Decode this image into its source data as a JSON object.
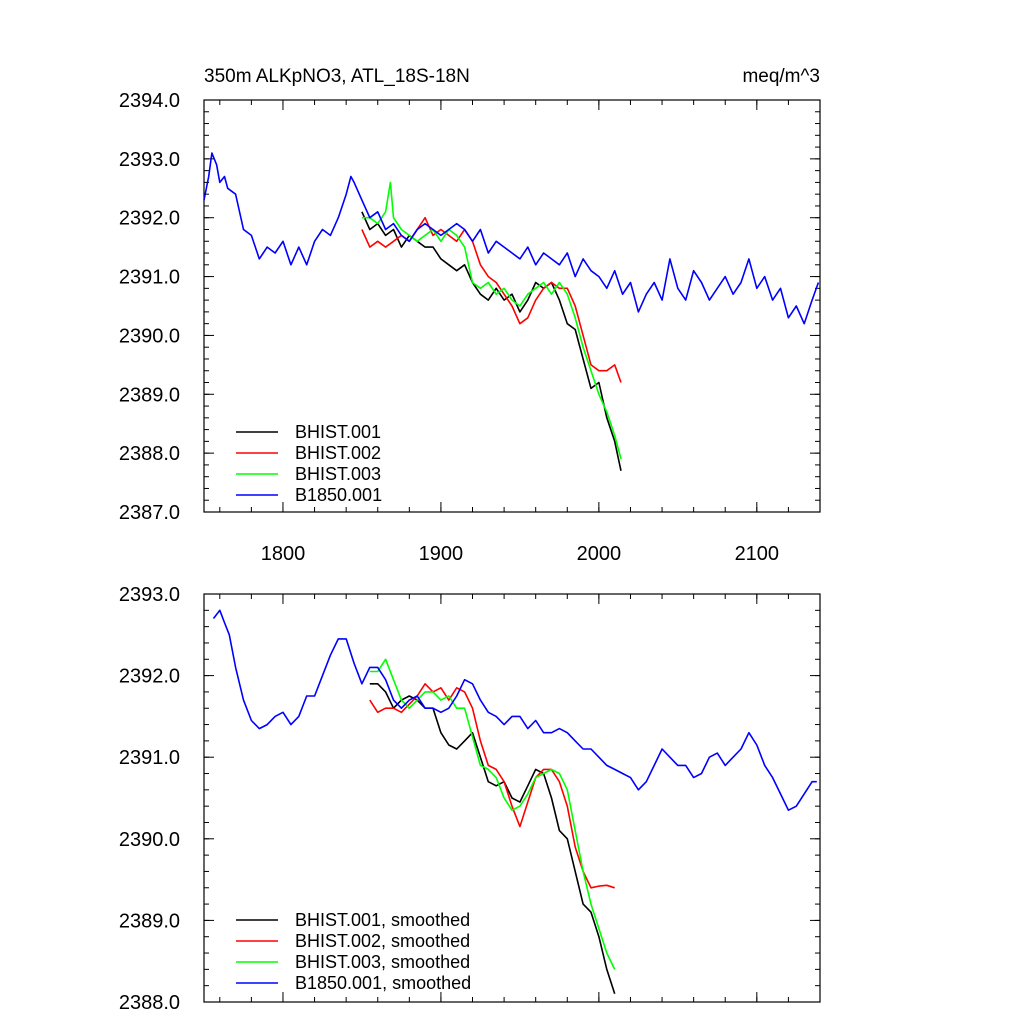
{
  "header": {
    "left": "350m ALKpNO3, ATL_18S-18N",
    "right": "meq/m^3"
  },
  "colors": {
    "BHIST.001": "#000000",
    "BHIST.002": "#ff0000",
    "BHIST.003": "#00ff00",
    "B1850.001": "#0000ff"
  },
  "chart_data": [
    {
      "type": "line",
      "title": "",
      "xlabel": "",
      "ylabel": "",
      "xlim": [
        1750,
        2140
      ],
      "ylim": [
        2387.0,
        2394.0
      ],
      "x_ticks": [
        1800,
        1900,
        2000,
        2100
      ],
      "x_tick_labels": [
        "1800",
        "1900",
        "2000",
        "2100"
      ],
      "y_ticks": [
        2387.0,
        2388.0,
        2389.0,
        2390.0,
        2391.0,
        2392.0,
        2393.0,
        2394.0
      ],
      "y_tick_labels": [
        "2387.0",
        "2388.0",
        "2389.0",
        "2390.0",
        "2391.0",
        "2392.0",
        "2393.0",
        "2394.0"
      ],
      "grid": false,
      "legend_position": "bottom-left",
      "series": [
        {
          "name": "BHIST.001",
          "color": "#000000",
          "x": [
            1850,
            1855,
            1860,
            1865,
            1870,
            1875,
            1880,
            1885,
            1890,
            1895,
            1900,
            1905,
            1910,
            1915,
            1920,
            1925,
            1930,
            1935,
            1940,
            1945,
            1950,
            1955,
            1960,
            1965,
            1970,
            1975,
            1980,
            1985,
            1990,
            1995,
            2000,
            2005,
            2010,
            2014
          ],
          "y": [
            2392.1,
            2391.8,
            2391.9,
            2391.7,
            2391.8,
            2391.5,
            2391.7,
            2391.6,
            2391.5,
            2391.5,
            2391.3,
            2391.2,
            2391.1,
            2391.2,
            2390.9,
            2390.7,
            2390.6,
            2390.8,
            2390.6,
            2390.7,
            2390.4,
            2390.6,
            2390.9,
            2390.8,
            2390.9,
            2390.6,
            2390.2,
            2390.1,
            2389.6,
            2389.1,
            2389.2,
            2388.6,
            2388.2,
            2387.7
          ]
        },
        {
          "name": "BHIST.002",
          "color": "#ff0000",
          "x": [
            1850,
            1855,
            1860,
            1865,
            1870,
            1875,
            1880,
            1885,
            1890,
            1895,
            1900,
            1905,
            1910,
            1915,
            1920,
            1925,
            1930,
            1935,
            1940,
            1945,
            1950,
            1955,
            1960,
            1965,
            1970,
            1975,
            1980,
            1985,
            1990,
            1995,
            2000,
            2005,
            2010,
            2014
          ],
          "y": [
            2391.8,
            2391.5,
            2391.6,
            2391.5,
            2391.6,
            2391.7,
            2391.6,
            2391.8,
            2392.0,
            2391.7,
            2391.8,
            2391.7,
            2391.6,
            2391.8,
            2391.6,
            2391.2,
            2391.0,
            2390.9,
            2390.7,
            2390.5,
            2390.2,
            2390.3,
            2390.6,
            2390.8,
            2390.9,
            2390.8,
            2390.8,
            2390.5,
            2390.0,
            2389.5,
            2389.4,
            2389.4,
            2389.5,
            2389.2
          ]
        },
        {
          "name": "BHIST.003",
          "color": "#00ff00",
          "x": [
            1850,
            1855,
            1860,
            1865,
            1868,
            1870,
            1875,
            1880,
            1885,
            1890,
            1895,
            1900,
            1905,
            1910,
            1915,
            1920,
            1925,
            1930,
            1935,
            1940,
            1945,
            1950,
            1955,
            1960,
            1965,
            1970,
            1975,
            1980,
            1985,
            1990,
            1995,
            2000,
            2005,
            2010,
            2014
          ],
          "y": [
            2392.0,
            2392.0,
            2391.9,
            2392.1,
            2392.6,
            2392.0,
            2391.8,
            2391.7,
            2391.6,
            2391.7,
            2391.8,
            2391.6,
            2391.8,
            2391.7,
            2391.5,
            2390.9,
            2390.8,
            2390.9,
            2390.7,
            2390.8,
            2390.6,
            2390.5,
            2390.7,
            2390.8,
            2390.9,
            2390.7,
            2390.9,
            2390.7,
            2390.3,
            2389.8,
            2389.4,
            2389.0,
            2388.7,
            2388.3,
            2387.9
          ]
        },
        {
          "name": "B1850.001",
          "color": "#0000ff",
          "x": [
            1750,
            1753,
            1755,
            1758,
            1760,
            1763,
            1765,
            1770,
            1775,
            1780,
            1785,
            1790,
            1795,
            1800,
            1805,
            1810,
            1815,
            1820,
            1825,
            1830,
            1835,
            1840,
            1843,
            1845,
            1850,
            1855,
            1860,
            1865,
            1870,
            1875,
            1880,
            1885,
            1890,
            1895,
            1900,
            1905,
            1910,
            1915,
            1920,
            1925,
            1930,
            1935,
            1940,
            1945,
            1950,
            1955,
            1960,
            1965,
            1970,
            1975,
            1980,
            1985,
            1990,
            1995,
            2000,
            2005,
            2010,
            2015,
            2020,
            2025,
            2030,
            2035,
            2040,
            2045,
            2050,
            2055,
            2060,
            2065,
            2070,
            2075,
            2080,
            2085,
            2090,
            2095,
            2100,
            2105,
            2110,
            2115,
            2120,
            2125,
            2130,
            2135,
            2139
          ],
          "y": [
            2392.3,
            2392.7,
            2393.1,
            2392.9,
            2392.6,
            2392.7,
            2392.5,
            2392.4,
            2391.8,
            2391.7,
            2391.3,
            2391.5,
            2391.4,
            2391.6,
            2391.2,
            2391.5,
            2391.2,
            2391.6,
            2391.8,
            2391.7,
            2392.0,
            2392.4,
            2392.7,
            2392.6,
            2392.3,
            2392.0,
            2392.1,
            2391.8,
            2391.9,
            2391.7,
            2391.6,
            2391.8,
            2391.9,
            2391.8,
            2391.7,
            2391.8,
            2391.9,
            2391.8,
            2391.6,
            2391.8,
            2391.4,
            2391.6,
            2391.5,
            2391.4,
            2391.3,
            2391.5,
            2391.2,
            2391.4,
            2391.3,
            2391.2,
            2391.4,
            2391.0,
            2391.3,
            2391.1,
            2391.0,
            2390.8,
            2391.1,
            2390.7,
            2390.9,
            2390.4,
            2390.7,
            2390.9,
            2390.6,
            2391.3,
            2390.8,
            2390.6,
            2391.1,
            2390.9,
            2390.6,
            2390.8,
            2391.0,
            2390.7,
            2390.9,
            2391.3,
            2390.8,
            2391.0,
            2390.6,
            2390.8,
            2390.3,
            2390.5,
            2390.2,
            2390.6,
            2390.9
          ]
        }
      ]
    },
    {
      "type": "line",
      "title": "",
      "xlabel": "",
      "ylabel": "",
      "xlim": [
        1750,
        2140
      ],
      "ylim": [
        2388.0,
        2393.0
      ],
      "x_ticks": [
        1800,
        1900,
        2000,
        2100
      ],
      "x_tick_labels": [],
      "y_ticks": [
        2388.0,
        2389.0,
        2390.0,
        2391.0,
        2392.0,
        2393.0
      ],
      "y_tick_labels": [
        "2388.0",
        "2389.0",
        "2390.0",
        "2391.0",
        "2392.0",
        "2393.0"
      ],
      "grid": false,
      "legend_position": "bottom-left",
      "series": [
        {
          "name": "BHIST.001, smoothed",
          "color": "#000000",
          "x": [
            1855,
            1860,
            1865,
            1870,
            1875,
            1880,
            1885,
            1890,
            1895,
            1900,
            1905,
            1910,
            1915,
            1920,
            1925,
            1930,
            1935,
            1940,
            1945,
            1950,
            1955,
            1960,
            1965,
            1970,
            1975,
            1980,
            1985,
            1990,
            1995,
            2000,
            2005,
            2010
          ],
          "y": [
            2391.9,
            2391.9,
            2391.8,
            2391.6,
            2391.7,
            2391.75,
            2391.7,
            2391.6,
            2391.6,
            2391.3,
            2391.15,
            2391.1,
            2391.2,
            2391.3,
            2391.0,
            2390.7,
            2390.65,
            2390.7,
            2390.5,
            2390.45,
            2390.65,
            2390.85,
            2390.8,
            2390.5,
            2390.1,
            2390.0,
            2389.6,
            2389.2,
            2389.1,
            2388.8,
            2388.4,
            2388.1
          ]
        },
        {
          "name": "BHIST.002, smoothed",
          "color": "#ff0000",
          "x": [
            1855,
            1860,
            1865,
            1870,
            1875,
            1880,
            1885,
            1890,
            1895,
            1900,
            1905,
            1910,
            1915,
            1920,
            1925,
            1930,
            1935,
            1940,
            1945,
            1950,
            1955,
            1960,
            1965,
            1970,
            1975,
            1980,
            1985,
            1990,
            1995,
            2000,
            2005,
            2010
          ],
          "y": [
            2391.7,
            2391.55,
            2391.6,
            2391.6,
            2391.55,
            2391.65,
            2391.75,
            2391.9,
            2391.8,
            2391.85,
            2391.7,
            2391.85,
            2391.8,
            2391.6,
            2391.2,
            2390.9,
            2390.85,
            2390.7,
            2390.4,
            2390.15,
            2390.45,
            2390.75,
            2390.85,
            2390.85,
            2390.7,
            2390.4,
            2389.9,
            2389.6,
            2389.4,
            2389.42,
            2389.43,
            2389.4
          ]
        },
        {
          "name": "BHIST.003, smoothed",
          "color": "#00ff00",
          "x": [
            1855,
            1860,
            1865,
            1870,
            1875,
            1880,
            1885,
            1890,
            1895,
            1900,
            1905,
            1910,
            1915,
            1920,
            1925,
            1930,
            1935,
            1940,
            1945,
            1950,
            1955,
            1960,
            1965,
            1970,
            1975,
            1980,
            1985,
            1990,
            1995,
            2000,
            2005,
            2010
          ],
          "y": [
            2392.05,
            2392.05,
            2392.2,
            2391.95,
            2391.7,
            2391.6,
            2391.7,
            2391.8,
            2391.8,
            2391.7,
            2391.75,
            2391.6,
            2391.6,
            2391.25,
            2390.9,
            2390.85,
            2390.75,
            2390.5,
            2390.35,
            2390.4,
            2390.55,
            2390.75,
            2390.8,
            2390.85,
            2390.8,
            2390.6,
            2390.1,
            2389.6,
            2389.2,
            2388.9,
            2388.6,
            2388.4
          ]
        },
        {
          "name": "B1850.001, smoothed",
          "color": "#0000ff",
          "x": [
            1756,
            1760,
            1763,
            1766,
            1770,
            1775,
            1780,
            1785,
            1790,
            1795,
            1800,
            1805,
            1810,
            1815,
            1820,
            1825,
            1830,
            1835,
            1840,
            1845,
            1850,
            1855,
            1860,
            1865,
            1870,
            1875,
            1880,
            1885,
            1890,
            1895,
            1900,
            1905,
            1910,
            1915,
            1920,
            1925,
            1930,
            1935,
            1940,
            1945,
            1950,
            1955,
            1960,
            1965,
            1970,
            1975,
            1980,
            1985,
            1990,
            1995,
            2000,
            2005,
            2010,
            2015,
            2020,
            2025,
            2030,
            2035,
            2040,
            2045,
            2050,
            2055,
            2060,
            2065,
            2070,
            2075,
            2080,
            2085,
            2090,
            2095,
            2100,
            2105,
            2110,
            2115,
            2120,
            2125,
            2130,
            2135,
            2138
          ],
          "y": [
            2392.7,
            2392.8,
            2392.65,
            2392.5,
            2392.1,
            2391.7,
            2391.45,
            2391.35,
            2391.4,
            2391.5,
            2391.55,
            2391.4,
            2391.5,
            2391.75,
            2391.75,
            2392.0,
            2392.25,
            2392.45,
            2392.45,
            2392.15,
            2391.9,
            2392.1,
            2392.1,
            2391.95,
            2391.7,
            2391.6,
            2391.7,
            2391.75,
            2391.6,
            2391.6,
            2391.55,
            2391.6,
            2391.75,
            2391.95,
            2391.9,
            2391.7,
            2391.55,
            2391.5,
            2391.4,
            2391.5,
            2391.5,
            2391.35,
            2391.45,
            2391.3,
            2391.3,
            2391.35,
            2391.3,
            2391.2,
            2391.1,
            2391.1,
            2391.0,
            2390.9,
            2390.85,
            2390.8,
            2390.75,
            2390.6,
            2390.7,
            2390.9,
            2391.1,
            2391.0,
            2390.9,
            2390.9,
            2390.75,
            2390.8,
            2391.0,
            2391.05,
            2390.9,
            2391.0,
            2391.1,
            2391.3,
            2391.15,
            2390.9,
            2390.75,
            2390.55,
            2390.35,
            2390.4,
            2390.55,
            2390.7,
            2390.7
          ]
        }
      ]
    }
  ]
}
